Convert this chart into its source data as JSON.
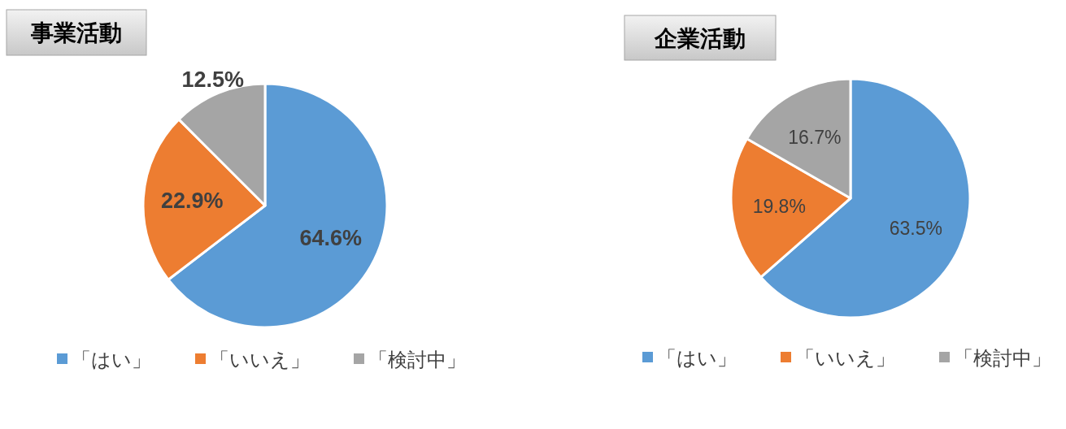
{
  "chart_data": [
    {
      "type": "pie",
      "title": "事業活動",
      "categories": [
        "「はい」",
        "「いいえ」",
        "「検討中」"
      ],
      "values": [
        64.6,
        22.9,
        12.5
      ],
      "value_labels": [
        "64.6%",
        "22.9%",
        "12.5%"
      ],
      "colors": [
        "#5b9bd5",
        "#ed7d31",
        "#a5a5a5"
      ],
      "legend": "bottom"
    },
    {
      "type": "pie",
      "title": "企業活動",
      "categories": [
        "「はい」",
        "「いいえ」",
        "「検討中」"
      ],
      "values": [
        63.5,
        19.8,
        16.7
      ],
      "value_labels": [
        "63.5%",
        "19.8%",
        "16.7%"
      ],
      "colors": [
        "#5b9bd5",
        "#ed7d31",
        "#a5a5a5"
      ],
      "legend": "bottom"
    }
  ]
}
